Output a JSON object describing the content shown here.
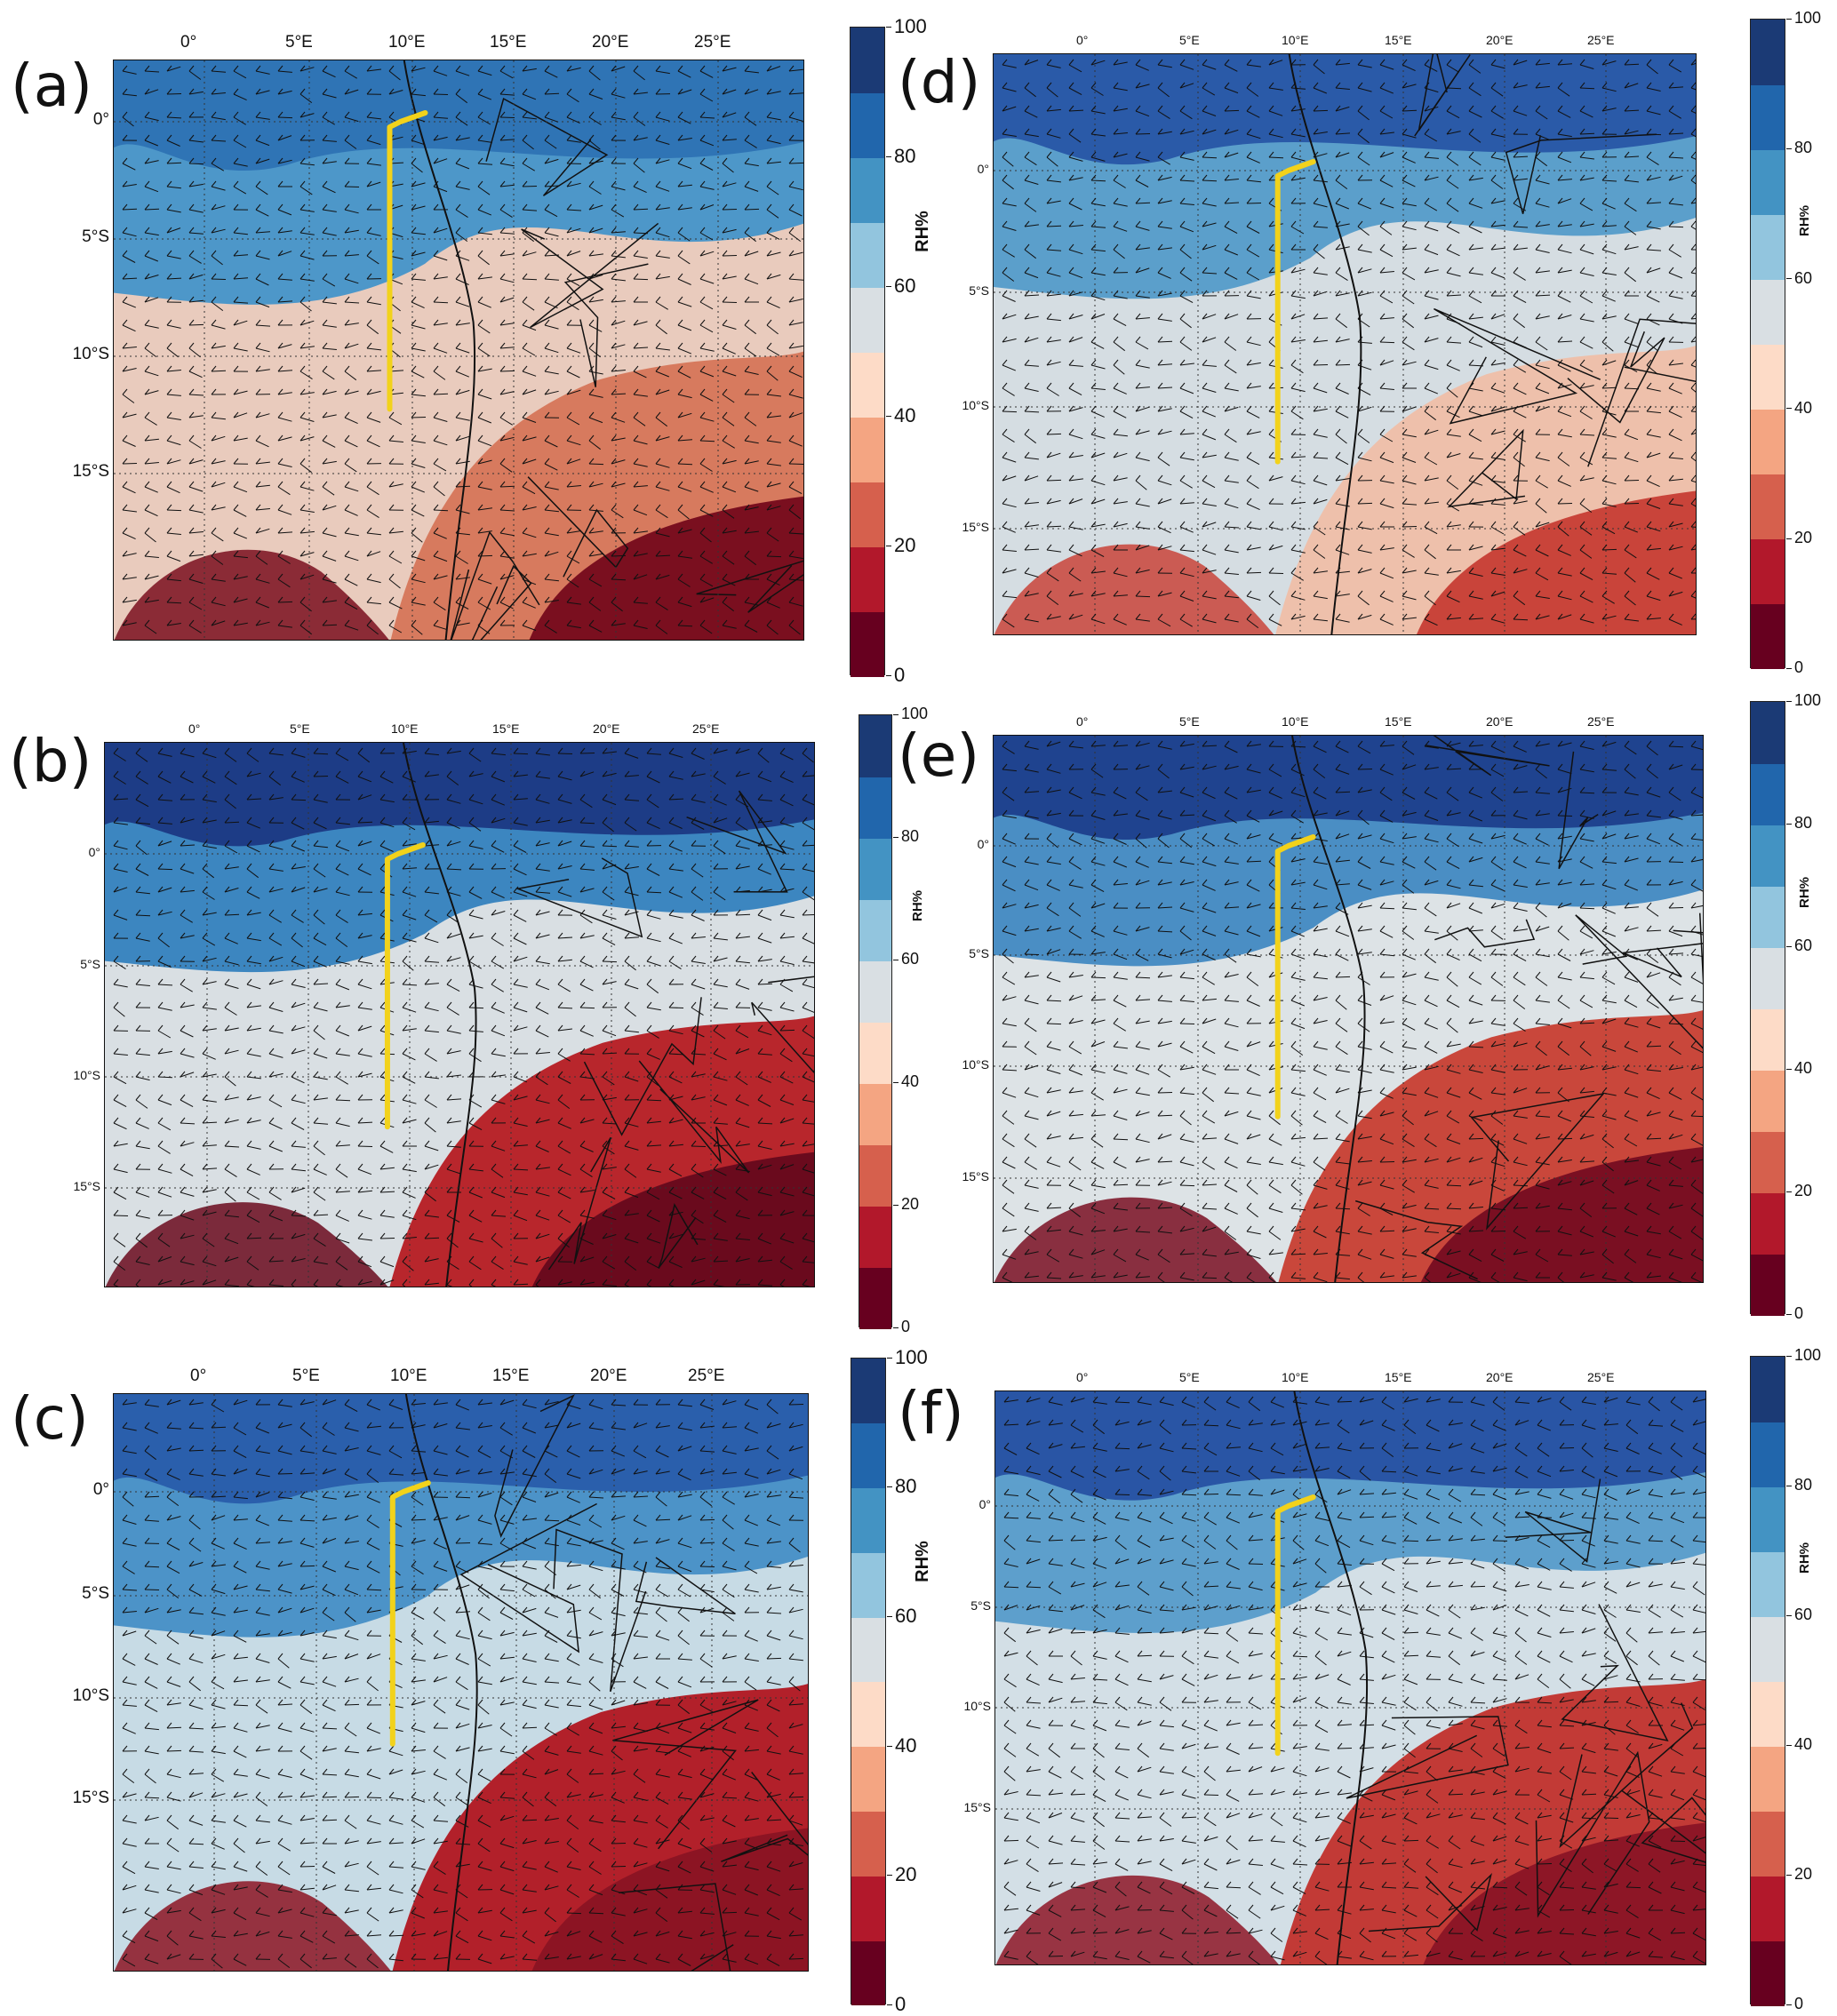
{
  "colorbar": {
    "title": "RH%",
    "ticks": [
      "0",
      "20",
      "40",
      "60",
      "80",
      "100"
    ],
    "colors": [
      "#67001f",
      "#b2182b",
      "#d6604d",
      "#f4a582",
      "#fddbc7",
      "#d9dfe3",
      "#92c5de",
      "#4393c3",
      "#2166ac",
      "#1b3a75"
    ]
  },
  "axes": {
    "lon_labels": [
      "0°",
      "5°E",
      "10°E",
      "15°E",
      "20°E",
      "25°E"
    ],
    "lat_labels": [
      "0°",
      "5°S",
      "10°S",
      "15°S"
    ]
  },
  "flight_track_color": "#f2d21b",
  "panels": [
    {
      "id": "a",
      "label": "(a)",
      "palette": [
        "#2f74b5",
        "#4d97c9",
        "#e9cbbd",
        "#d77a5e",
        "#7a0f1f"
      ]
    },
    {
      "id": "b",
      "label": "(b)",
      "palette": [
        "#1d3c86",
        "#3c86c0",
        "#d9dfe3",
        "#b8262c",
        "#6a0a1d"
      ]
    },
    {
      "id": "c",
      "label": "(c)",
      "palette": [
        "#2a5fac",
        "#4c93c8",
        "#c7dbe5",
        "#b2202a",
        "#8c1423"
      ]
    },
    {
      "id": "d",
      "label": "(d)",
      "palette": [
        "#2a5aa8",
        "#5b9fcb",
        "#d5dde2",
        "#eec0ab",
        "#c9443a"
      ]
    },
    {
      "id": "e",
      "label": "(e)",
      "palette": [
        "#1f438f",
        "#4a8ec4",
        "#dde3e6",
        "#c9473b",
        "#7a0f22"
      ]
    },
    {
      "id": "f",
      "label": "(f)",
      "palette": [
        "#2955a5",
        "#5d9fcc",
        "#d3dfe6",
        "#c23a36",
        "#8d1626"
      ]
    }
  ]
}
